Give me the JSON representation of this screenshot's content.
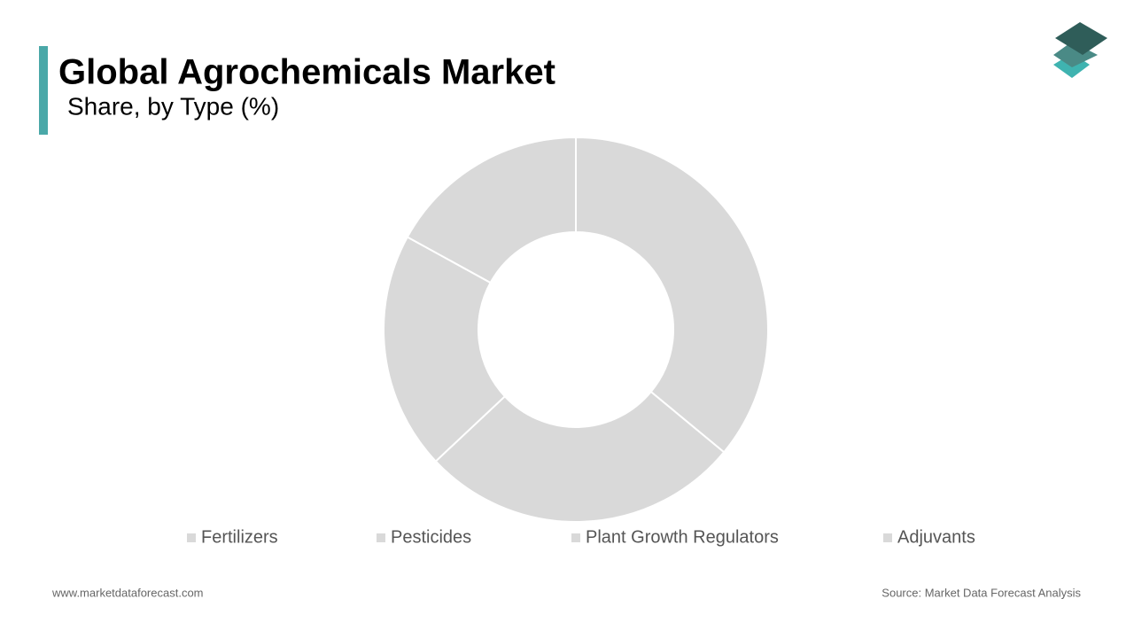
{
  "chart_data": {
    "type": "donut",
    "title": "Global Agrochemicals Market",
    "subtitle": "Share, by Type (%)",
    "categories": [
      "Fertilizers",
      "Pesticides",
      "Plant Growth Regulators",
      "Adjuvants"
    ],
    "values": [
      36,
      27,
      20,
      17
    ],
    "colors": [
      "#d9d9d9",
      "#d9d9d9",
      "#d9d9d9",
      "#d9d9d9"
    ],
    "legend": "bottom"
  },
  "footer": {
    "website": "www.marketdataforecast.com",
    "source": "Source: Market Data Forecast Analysis"
  }
}
